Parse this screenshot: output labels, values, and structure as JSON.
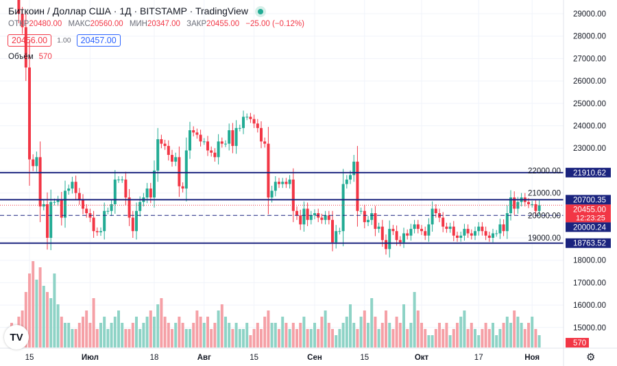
{
  "header": {
    "title": "Биткоин / Доллар США · 1Д · BITSTAMP · TradingView",
    "status_dot": "market-open"
  },
  "ohlc": {
    "open_label": "ОТКР",
    "open": "20480.00",
    "high_label": "МАКС",
    "high": "20560.00",
    "low_label": "МИН",
    "low": "20347.00",
    "close_label": "ЗАКР",
    "close": "20455.00",
    "change": "−25.00 (−0.12%)"
  },
  "quote": {
    "sell": "20456.00",
    "spread": "1.00",
    "buy": "20457.00"
  },
  "volume": {
    "label": "Объём",
    "value": "570"
  },
  "colors": {
    "up": "#22ab94",
    "down": "#f23645",
    "up_vol": "#8ed3c6",
    "down_vol": "#f5a0a6",
    "level": "#1a237e",
    "price_tag": "#f23645"
  },
  "chart_data": {
    "type": "candlestick",
    "y_axis": {
      "min": 15000,
      "max": 29000,
      "ticks": [
        "29000.00",
        "28000.00",
        "27000.00",
        "26000.00",
        "25000.00",
        "24000.00",
        "23000.00",
        "22000.00",
        "21000.00",
        "20000.00",
        "19000.00",
        "18000.00",
        "17000.00",
        "16000.00",
        "15000.00"
      ]
    },
    "x_labels": [
      {
        "text": "15",
        "i": 5
      },
      {
        "text": "Июл",
        "i": 22
      },
      {
        "text": "18",
        "i": 40
      },
      {
        "text": "Авг",
        "i": 54
      },
      {
        "text": "15",
        "i": 68
      },
      {
        "text": "Сен",
        "i": 85
      },
      {
        "text": "15",
        "i": 99
      },
      {
        "text": "Окт",
        "i": 115
      },
      {
        "text": "17",
        "i": 131
      },
      {
        "text": "Ноя",
        "i": 146
      }
    ],
    "levels": [
      {
        "value": 21910.62,
        "label": "21910.62",
        "style": "solid"
      },
      {
        "value": 20700.35,
        "label": "20700.35",
        "style": "solid"
      },
      {
        "value": 20000.24,
        "label": "20000.24",
        "style": "dashed"
      },
      {
        "value": 18763.52,
        "label": "18763.52",
        "style": "solid"
      }
    ],
    "last_price": {
      "value": 20455,
      "label": "20455.00",
      "countdown": "12:23:25"
    },
    "volume_tag": "570",
    "closes": [
      30200,
      30100,
      29000,
      28400,
      26600,
      22500,
      22200,
      22600,
      20400,
      20500,
      19000,
      20600,
      20600,
      20700,
      19900,
      21100,
      21200,
      21500,
      21000,
      20700,
      20300,
      20100,
      19900,
      19300,
      19250,
      19300,
      20200,
      20200,
      20500,
      21600,
      21600,
      21600,
      20800,
      19900,
      19300,
      20200,
      20600,
      20800,
      21200,
      20800,
      22000,
      23400,
      23200,
      23100,
      22700,
      22400,
      22600,
      21300,
      21200,
      22900,
      23800,
      23700,
      23600,
      23300,
      23300,
      22900,
      22800,
      22600,
      23300,
      23200,
      23200,
      23800,
      23100,
      23900,
      23900,
      24400,
      24400,
      24300,
      24100,
      23900,
      23300,
      23200,
      20800,
      21100,
      21500,
      21400,
      21500,
      21400,
      21600,
      20200,
      20000,
      19600,
      20300,
      19800,
      20000,
      20100,
      19900,
      19800,
      20000,
      19800,
      18800,
      19300,
      19300,
      21400,
      21600,
      21800,
      22400,
      20200,
      20200,
      19700,
      19800,
      20100,
      19400,
      19500,
      18900,
      18500,
      19400,
      19300,
      18900,
      18800,
      19200,
      19100,
      19400,
      19600,
      19400,
      19300,
      19100,
      19600,
      20300,
      20100,
      19900,
      19500,
      19400,
      19500,
      19100,
      19000,
      19100,
      19400,
      19200,
      19100,
      19300,
      19500,
      19300,
      19100,
      19000,
      19200,
      19200,
      19600,
      19300,
      20100,
      20800,
      20300,
      20600,
      20800,
      20600,
      20500,
      20500,
      20200,
      20455
    ],
    "volumes": [
      4,
      3,
      5,
      6,
      9,
      12,
      14,
      11,
      13,
      10,
      9,
      8,
      12,
      7,
      5,
      4,
      4,
      3,
      3,
      4,
      5,
      6,
      4,
      8,
      3,
      4,
      5,
      3,
      4,
      5,
      6,
      4,
      3,
      3,
      4,
      5,
      3,
      4,
      5,
      6,
      5,
      7,
      8,
      5,
      4,
      3,
      4,
      5,
      4,
      3,
      3,
      4,
      6,
      5,
      4,
      5,
      3,
      4,
      6,
      7,
      5,
      4,
      3,
      4,
      3,
      3,
      4,
      2,
      3,
      4,
      3,
      5,
      6,
      4,
      4,
      3,
      5,
      4,
      3,
      4,
      3,
      4,
      5,
      3,
      3,
      4,
      3,
      5,
      6,
      4,
      3,
      2,
      3,
      4,
      5,
      7,
      4,
      3,
      5,
      6,
      4,
      8,
      5,
      3,
      4,
      6,
      4,
      3,
      5,
      4,
      7,
      3,
      4,
      9,
      6,
      4,
      3,
      2,
      2,
      3,
      4,
      3,
      4,
      2,
      3,
      4,
      5,
      6,
      3,
      4,
      3,
      2,
      3,
      4,
      3,
      4,
      2,
      3,
      4,
      5,
      4,
      6,
      5,
      4,
      3,
      4,
      5,
      3,
      2
    ]
  }
}
